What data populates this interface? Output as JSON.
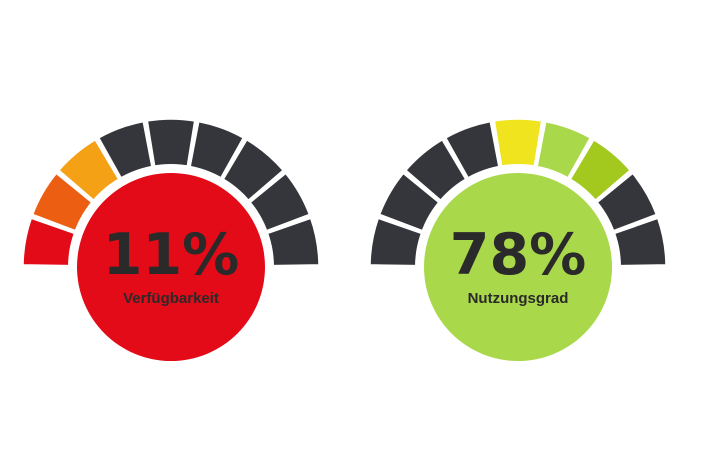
{
  "chart_data": [
    {
      "type": "gauge",
      "value_text": "11%",
      "label": "Verfügbarkeit",
      "value": 11,
      "circle_color": "#e30b17",
      "segments": [
        "#e30b17",
        "#ec5e12",
        "#f4a116",
        "#34363b",
        "#34363b",
        "#34363b",
        "#34363b",
        "#34363b",
        "#34363b"
      ]
    },
    {
      "type": "gauge",
      "value_text": "78%",
      "label": "Nutzungsgrad",
      "value": 78,
      "circle_color": "#a9d84a",
      "segments": [
        "#34363b",
        "#34363b",
        "#34363b",
        "#34363b",
        "#f0e41e",
        "#a9d84a",
        "#a3c91e",
        "#34363b",
        "#34363b"
      ]
    }
  ]
}
